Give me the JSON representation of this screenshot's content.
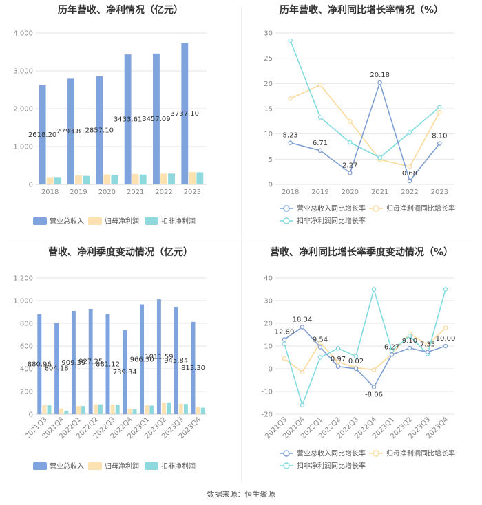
{
  "source": "数据来源：恒生聚源",
  "colors": {
    "revenue": "#7fa3dd",
    "parent_profit": "#fde2b1",
    "deducted_profit": "#8ed9dc",
    "revenue_line": "#7f9fd4",
    "parent_line": "#fbd99b",
    "deducted_line": "#80dbe0",
    "grid": "#e6e6e6",
    "axis": "#cccccc"
  },
  "chart_data": [
    {
      "type": "bar",
      "title": "历年营收、净利情况（亿元）",
      "categories": [
        "2018",
        "2019",
        "2020",
        "2021",
        "2022",
        "2023"
      ],
      "series": [
        {
          "name": "营业总收入",
          "values": [
            2618.2,
            2793.81,
            2857.1,
            3433.61,
            3457.09,
            3737.1
          ],
          "labels": [
            "2618.20",
            "2793.81",
            "2857.10",
            "3433.61",
            "3457.09",
            "3737.10"
          ]
        },
        {
          "name": "归母净利润",
          "values": [
            190,
            235,
            262,
            275,
            285,
            325
          ]
        },
        {
          "name": "扣非净利润",
          "values": [
            195,
            225,
            248,
            260,
            285,
            318
          ]
        }
      ],
      "ylim": [
        0,
        4000
      ],
      "yticks": [
        0,
        1000,
        2000,
        3000,
        4000
      ],
      "ytick_labels": [
        "0",
        "1,000",
        "2,000",
        "3,000",
        "4,000"
      ],
      "legend": "bottom"
    },
    {
      "type": "line",
      "title": "历年营收、净利同比增长率情况（%）",
      "categories": [
        "2018",
        "2019",
        "2020",
        "2021",
        "2022",
        "2023"
      ],
      "series": [
        {
          "name": "营业总收入同比增长率",
          "values": [
            8.23,
            6.71,
            2.27,
            20.18,
            0.68,
            8.1
          ],
          "labels": [
            "8.23",
            "6.71",
            "2.27",
            "20.18",
            "0.68",
            "8.10"
          ]
        },
        {
          "name": "归母净利润同比增长率",
          "values": [
            17.0,
            19.7,
            12.5,
            4.9,
            3.5,
            14.3
          ]
        },
        {
          "name": "扣非净利润同比增长率",
          "values": [
            28.5,
            13.3,
            8.3,
            5.3,
            10.3,
            15.3
          ]
        }
      ],
      "ylim": [
        0,
        30
      ],
      "yticks": [
        0,
        5,
        10,
        15,
        20,
        25,
        30
      ],
      "ytick_labels": [
        "0",
        "5",
        "10",
        "15",
        "20",
        "25",
        "30"
      ],
      "legend": "bottom"
    },
    {
      "type": "bar",
      "title": "营收、净利季度变动情况（亿元）",
      "categories": [
        "2021Q3",
        "2021Q4",
        "2022Q1",
        "2022Q2",
        "2022Q3",
        "2022Q4",
        "2023Q1",
        "2023Q2",
        "2023Q3",
        "2023Q4"
      ],
      "series": [
        {
          "name": "营业总收入",
          "values": [
            880.96,
            804.18,
            909.39,
            927.25,
            881.12,
            739.34,
            966.3,
            1011.59,
            945.84,
            813.3
          ],
          "labels": [
            "880.96",
            "804.18",
            "909.39",
            "927.25",
            "881.12",
            "739.34",
            "966.30",
            "1011.59",
            "945.84",
            "813.30"
          ]
        },
        {
          "name": "归母净利润",
          "values": [
            82,
            50,
            72,
            87,
            85,
            48,
            80,
            98,
            92,
            60
          ]
        },
        {
          "name": "扣非净利润",
          "values": [
            78,
            30,
            72,
            87,
            85,
            42,
            76,
            98,
            90,
            57
          ]
        }
      ],
      "ylim": [
        0,
        1200
      ],
      "yticks": [
        0,
        200,
        400,
        600,
        800,
        1000,
        1200
      ],
      "ytick_labels": [
        "0",
        "200",
        "400",
        "600",
        "800",
        "1,000",
        "1,200"
      ],
      "legend": "bottom"
    },
    {
      "type": "line",
      "title": "营收、净利同比增长率季度变动情况（%）",
      "categories": [
        "2021Q3",
        "2021Q4",
        "2022Q1",
        "2022Q2",
        "2022Q3",
        "2022Q4",
        "2023Q1",
        "2023Q2",
        "2023Q3",
        "2023Q4"
      ],
      "series": [
        {
          "name": "营业总收入同比增长率",
          "values": [
            12.89,
            18.34,
            9.54,
            0.97,
            0.02,
            -8.06,
            6.27,
            9.1,
            7.35,
            10.0
          ],
          "labels": [
            "12.89",
            "18.34",
            "9.54",
            "0.97",
            "0.02",
            "-8.06",
            "6.27",
            "9.10",
            "7.35",
            "10.00"
          ]
        },
        {
          "name": "归母净利润同比增长率",
          "values": [
            4.5,
            -1.5,
            11.5,
            3.0,
            0.5,
            -0.5,
            6.5,
            15.5,
            10.5,
            18.0
          ]
        },
        {
          "name": "扣非净利润同比增长率",
          "values": [
            11.0,
            -16.0,
            5.0,
            9.0,
            5.5,
            35.0,
            8.0,
            14.5,
            6.5,
            35.0
          ]
        }
      ],
      "ylim": [
        -20,
        40
      ],
      "yticks": [
        -20,
        -10,
        0,
        10,
        20,
        30,
        40
      ],
      "ytick_labels": [
        "-20",
        "-10",
        "0",
        "10",
        "20",
        "30",
        "40"
      ],
      "legend": "bottom"
    }
  ]
}
